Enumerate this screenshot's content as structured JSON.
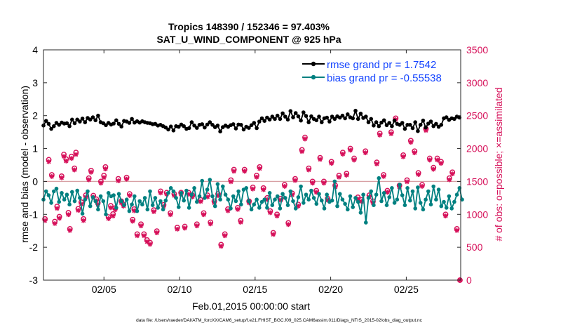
{
  "chart_data": {
    "type": "line",
    "title_line1": "Tropics 148390 / 152346 = 97.403%",
    "title_line2": "SAT_U_WIND_COMPONENT @ 925 hPa",
    "xlabel": "Feb.01,2015 00:00:00 start",
    "ylabel_left": "rmse and bias (model - observation)",
    "ylabel_right": "# of obs: o=possible; ×=assimilated",
    "footnote": "data file: /Users/raeder/DAI/ATM_forcXX/CAM6_setup/f.e21.FHIST_BGC.f09_025.CAM6assim.011/Diags_NTrS_2015-02/obs_diag_output.nc",
    "x_ticks": [
      "02/05",
      "02/10",
      "02/15",
      "02/20",
      "02/25"
    ],
    "x_tick_values": [
      5,
      10,
      15,
      20,
      25
    ],
    "xlim": [
      1,
      28.6
    ],
    "ylim_left": [
      -3,
      4
    ],
    "left_ticks": [
      "-3",
      "-2",
      "-1",
      "0",
      "1",
      "2",
      "3",
      "4"
    ],
    "ylim_right": [
      0,
      3500
    ],
    "right_ticks": [
      "0",
      "500",
      "1000",
      "1500",
      "2000",
      "2500",
      "3000",
      "3500"
    ],
    "zero_line": 0,
    "colors": {
      "rmse": "#000000",
      "bias": "#008080",
      "obs": "#d6115a",
      "zero": "#d8a0a4",
      "legend_text": "#1646ff"
    },
    "series": [
      {
        "name": "rmse grand pr = 1.7542",
        "role": "rmse",
        "values": [
          1.7,
          1.84,
          1.75,
          1.6,
          1.68,
          1.78,
          1.72,
          1.79,
          1.76,
          1.77,
          1.68,
          1.88,
          1.77,
          1.88,
          1.82,
          1.91,
          1.8,
          1.93,
          1.88,
          1.95,
          1.86,
          2.0,
          1.8,
          1.77,
          1.71,
          1.78,
          1.73,
          1.76,
          1.86,
          1.75,
          1.67,
          1.84,
          1.82,
          1.78,
          1.9,
          1.79,
          1.83,
          1.79,
          1.83,
          1.8,
          1.78,
          1.77,
          1.74,
          1.75,
          1.7,
          1.72,
          1.68,
          1.64,
          1.58,
          1.67,
          1.55,
          1.68,
          1.66,
          1.73,
          1.68,
          1.6,
          1.62,
          1.8,
          1.7,
          1.63,
          1.72,
          1.74,
          1.64,
          1.73,
          1.8,
          1.72,
          1.65,
          1.7,
          1.52,
          1.65,
          1.7,
          1.66,
          1.71,
          1.74,
          1.61,
          1.73,
          1.72,
          1.58,
          1.66,
          1.63,
          1.71,
          1.78,
          1.62,
          1.82,
          1.92,
          1.84,
          1.94,
          1.88,
          1.97,
          1.9,
          2.0,
          1.9,
          2.07,
          1.97,
          1.88,
          2.14,
          1.95,
          2.08,
          1.98,
          1.85,
          2.1,
          1.99,
          1.8,
          1.98,
          1.9,
          1.86,
          1.97,
          1.8,
          1.92,
          1.94,
          1.82,
          1.97,
          1.9,
          1.98,
          1.94,
          2.0,
          1.92,
          2.04,
          1.95,
          1.92,
          2.15,
          1.9,
          2.06,
          1.93,
          1.97,
          1.8,
          1.9,
          1.7,
          1.8,
          1.68,
          1.79,
          1.86,
          1.71,
          1.78,
          1.68,
          1.85,
          1.75,
          1.72,
          1.78,
          1.6,
          1.72,
          1.72,
          1.62,
          1.8,
          1.53,
          1.72,
          1.85,
          1.64,
          1.76,
          1.82,
          1.68,
          1.75,
          1.66,
          1.72,
          1.92,
          1.95,
          1.87,
          1.92,
          1.9,
          1.97,
          1.94
        ],
        "x_start": 1.0,
        "x_step": 0.172
      },
      {
        "name": "bias grand pr = -0.55538",
        "role": "bias",
        "values": [
          -0.55,
          -0.3,
          -0.42,
          -0.65,
          -0.3,
          -0.22,
          -0.62,
          -0.35,
          -0.55,
          -0.4,
          -0.7,
          -0.32,
          -0.6,
          -0.28,
          -0.5,
          -0.98,
          -0.55,
          -0.3,
          -0.75,
          -0.48,
          -0.6,
          -0.85,
          -0.45,
          -0.6,
          -1.0,
          -0.35,
          -0.45,
          -0.42,
          -0.8,
          -0.38,
          -0.6,
          -0.72,
          -0.55,
          -0.9,
          -0.7,
          -0.45,
          -0.9,
          -0.6,
          -0.7,
          -0.5,
          -0.85,
          -0.3,
          -0.72,
          -0.5,
          -0.8,
          -0.6,
          -0.85,
          -0.58,
          -0.35,
          -0.2,
          -0.3,
          -0.5,
          -0.78,
          -0.35,
          -0.58,
          -0.28,
          -0.8,
          -0.4,
          -0.2,
          -0.62,
          -0.45,
          0.02,
          -0.5,
          -0.25,
          0.05,
          -0.45,
          -0.75,
          -0.08,
          -0.55,
          -0.15,
          -0.4,
          -0.55,
          -0.82,
          -0.45,
          -0.6,
          -0.3,
          -0.7,
          -0.25,
          -0.2,
          -0.6,
          -0.85,
          -0.7,
          -0.55,
          -0.8,
          -0.62,
          -0.55,
          -0.8,
          -0.35,
          -0.72,
          -0.55,
          -0.45,
          -0.82,
          -0.38,
          -0.5,
          -0.72,
          -0.3,
          -0.6,
          -0.82,
          -0.48,
          -0.15,
          -0.65,
          -0.4,
          -0.55,
          -0.28,
          -0.5,
          -0.68,
          -0.38,
          -0.58,
          -0.82,
          -0.4,
          -0.62,
          -0.58,
          0.0,
          -0.75,
          -0.38,
          -0.55,
          -0.68,
          -0.85,
          -0.45,
          -0.78,
          -0.5,
          -0.62,
          -0.95,
          -0.4,
          -1.25,
          -0.5,
          -0.3,
          -0.72,
          -0.4,
          0.1,
          -0.6,
          -0.35,
          -0.72,
          -0.48,
          -0.2,
          -0.65,
          -0.55,
          -0.1,
          -0.42,
          -0.72,
          -0.2,
          -0.58,
          -0.3,
          -0.82,
          -0.18,
          -0.65,
          -0.85,
          -0.55,
          -0.3,
          -0.7,
          -0.15,
          -0.55,
          -0.25,
          -0.75,
          -0.62,
          -0.8,
          -0.45,
          -0.82,
          -0.62,
          -0.4,
          -0.2,
          -0.55
        ],
        "x_start": 1.0,
        "x_step": 0.172
      }
    ],
    "obs_counts": [
      {
        "x": 1.1,
        "possible": 930,
        "assimilated": 905
      },
      {
        "x": 1.35,
        "possible": 1830,
        "assimilated": 1800
      },
      {
        "x": 1.55,
        "possible": 1600,
        "assimilated": 1575
      },
      {
        "x": 1.75,
        "possible": 890,
        "assimilated": 860
      },
      {
        "x": 1.9,
        "possible": 1120,
        "assimilated": 1090
      },
      {
        "x": 2.05,
        "possible": 965,
        "assimilated": 940
      },
      {
        "x": 2.2,
        "possible": 1580,
        "assimilated": 1555
      },
      {
        "x": 2.35,
        "possible": 1910,
        "assimilated": 1880
      },
      {
        "x": 2.5,
        "possible": 1840,
        "assimilated": 1810
      },
      {
        "x": 2.65,
        "possible": 1025,
        "assimilated": 995
      },
      {
        "x": 2.75,
        "possible": 780,
        "assimilated": 755
      },
      {
        "x": 2.85,
        "possible": 1880,
        "assimilated": 1850
      },
      {
        "x": 3.05,
        "possible": 1700,
        "assimilated": 1675
      },
      {
        "x": 3.15,
        "possible": 1940,
        "assimilated": 1910
      },
      {
        "x": 3.3,
        "possible": 1085,
        "assimilated": 1060
      },
      {
        "x": 3.5,
        "possible": 1185,
        "assimilated": 1155
      },
      {
        "x": 3.65,
        "possible": 930,
        "assimilated": 905
      },
      {
        "x": 3.8,
        "possible": 1290,
        "assimilated": 1260
      },
      {
        "x": 4.0,
        "possible": 1550,
        "assimilated": 1525
      },
      {
        "x": 4.15,
        "possible": 1665,
        "assimilated": 1640
      },
      {
        "x": 4.3,
        "possible": 1285,
        "assimilated": 1260
      },
      {
        "x": 4.5,
        "possible": 1230,
        "assimilated": 1205
      },
      {
        "x": 4.6,
        "possible": 1175,
        "assimilated": 1150
      },
      {
        "x": 4.8,
        "possible": 1500,
        "assimilated": 1475
      },
      {
        "x": 5.0,
        "possible": 1590,
        "assimilated": 1560
      },
      {
        "x": 5.1,
        "possible": 1720,
        "assimilated": 1690
      },
      {
        "x": 5.3,
        "possible": 960,
        "assimilated": 935
      },
      {
        "x": 5.45,
        "possible": 1130,
        "assimilated": 1100
      },
      {
        "x": 5.6,
        "possible": 1005,
        "assimilated": 975
      },
      {
        "x": 5.75,
        "possible": 1095,
        "assimilated": 1070
      },
      {
        "x": 5.95,
        "possible": 1540,
        "assimilated": 1510
      },
      {
        "x": 6.15,
        "possible": 1200,
        "assimilated": 1175
      },
      {
        "x": 6.3,
        "possible": 1150,
        "assimilated": 1125
      },
      {
        "x": 6.5,
        "possible": 1560,
        "assimilated": 1535
      },
      {
        "x": 6.7,
        "possible": 1310,
        "assimilated": 1285
      },
      {
        "x": 6.9,
        "possible": 920,
        "assimilated": 895
      },
      {
        "x": 7.0,
        "possible": 1080,
        "assimilated": 1055
      },
      {
        "x": 7.2,
        "possible": 700,
        "assimilated": 675
      },
      {
        "x": 7.45,
        "possible": 850,
        "assimilated": 825
      },
      {
        "x": 7.65,
        "possible": 700,
        "assimilated": 675
      },
      {
        "x": 7.85,
        "possible": 610,
        "assimilated": 585
      },
      {
        "x": 8.05,
        "possible": 570,
        "assimilated": 545
      },
      {
        "x": 8.3,
        "possible": 1065,
        "assimilated": 1040
      },
      {
        "x": 8.5,
        "possible": 745,
        "assimilated": 720
      },
      {
        "x": 8.75,
        "possible": 1350,
        "assimilated": 1325
      },
      {
        "x": 8.95,
        "possible": 1145,
        "assimilated": 1120
      },
      {
        "x": 9.15,
        "possible": 1330,
        "assimilated": 1305
      },
      {
        "x": 9.4,
        "possible": 1020,
        "assimilated": 995
      },
      {
        "x": 9.65,
        "possible": 1310,
        "assimilated": 1285
      },
      {
        "x": 9.85,
        "possible": 800,
        "assimilated": 775
      },
      {
        "x": 10.1,
        "possible": 1330,
        "assimilated": 1305
      },
      {
        "x": 10.35,
        "possible": 815,
        "assimilated": 790
      },
      {
        "x": 10.6,
        "possible": 1330,
        "assimilated": 1305
      },
      {
        "x": 10.85,
        "possible": 1290,
        "assimilated": 1265
      },
      {
        "x": 11.15,
        "possible": 850,
        "assimilated": 825
      },
      {
        "x": 11.4,
        "possible": 1220,
        "assimilated": 1195
      },
      {
        "x": 11.6,
        "possible": 1020,
        "assimilated": 995
      },
      {
        "x": 11.85,
        "possible": 1290,
        "assimilated": 1265
      },
      {
        "x": 12.05,
        "possible": 880,
        "assimilated": 855
      },
      {
        "x": 12.3,
        "possible": 1200,
        "assimilated": 1175
      },
      {
        "x": 12.55,
        "possible": 1310,
        "assimilated": 1285
      },
      {
        "x": 12.75,
        "possible": 540,
        "assimilated": 515
      },
      {
        "x": 13.0,
        "possible": 700,
        "assimilated": 675
      },
      {
        "x": 13.2,
        "possible": 1080,
        "assimilated": 1055
      },
      {
        "x": 13.4,
        "possible": 1520,
        "assimilated": 1495
      },
      {
        "x": 13.6,
        "possible": 1680,
        "assimilated": 1655
      },
      {
        "x": 13.85,
        "possible": 1100,
        "assimilated": 1075
      },
      {
        "x": 14.05,
        "possible": 905,
        "assimilated": 880
      },
      {
        "x": 14.3,
        "possible": 1680,
        "assimilated": 1655
      },
      {
        "x": 14.6,
        "possible": 1200,
        "assimilated": 1175
      },
      {
        "x": 14.85,
        "possible": 1410,
        "assimilated": 1385
      },
      {
        "x": 15.1,
        "possible": 1590,
        "assimilated": 1565
      },
      {
        "x": 15.3,
        "possible": 1720,
        "assimilated": 1695
      },
      {
        "x": 15.55,
        "possible": 1400,
        "assimilated": 1375
      },
      {
        "x": 15.8,
        "possible": 1250,
        "assimilated": 1225
      },
      {
        "x": 16.0,
        "possible": 1050,
        "assimilated": 1025
      },
      {
        "x": 16.2,
        "possible": 720,
        "assimilated": 695
      },
      {
        "x": 16.45,
        "possible": 1000,
        "assimilated": 975
      },
      {
        "x": 16.7,
        "possible": 1240,
        "assimilated": 1215
      },
      {
        "x": 16.95,
        "possible": 1450,
        "assimilated": 1425
      },
      {
        "x": 17.2,
        "possible": 870,
        "assimilated": 845
      },
      {
        "x": 17.45,
        "possible": 1320,
        "assimilated": 1295
      },
      {
        "x": 17.65,
        "possible": 1540,
        "assimilated": 1515
      },
      {
        "x": 17.85,
        "possible": 1150,
        "assimilated": 1125
      },
      {
        "x": 18.1,
        "possible": 1980,
        "assimilated": 1955
      },
      {
        "x": 18.3,
        "possible": 2170,
        "assimilated": 2145
      },
      {
        "x": 18.55,
        "possible": 1700,
        "assimilated": 1675
      },
      {
        "x": 18.8,
        "possible": 1500,
        "assimilated": 1475
      },
      {
        "x": 19.05,
        "possible": 1360,
        "assimilated": 1335
      },
      {
        "x": 19.3,
        "possible": 1860,
        "assimilated": 1835
      },
      {
        "x": 19.55,
        "possible": 1500,
        "assimilated": 1475
      },
      {
        "x": 19.8,
        "possible": 1240,
        "assimilated": 1215
      },
      {
        "x": 20.05,
        "possible": 1800,
        "assimilated": 1775
      },
      {
        "x": 20.3,
        "possible": 1440,
        "assimilated": 1415
      },
      {
        "x": 20.55,
        "possible": 1590,
        "assimilated": 1565
      },
      {
        "x": 20.8,
        "possible": 1940,
        "assimilated": 1915
      },
      {
        "x": 21.05,
        "possible": 1620,
        "assimilated": 1595
      },
      {
        "x": 21.3,
        "possible": 2000,
        "assimilated": 1975
      },
      {
        "x": 21.55,
        "possible": 1850,
        "assimilated": 1825
      },
      {
        "x": 21.8,
        "possible": 1260,
        "assimilated": 1235
      },
      {
        "x": 22.05,
        "possible": 1220,
        "assimilated": 1195
      },
      {
        "x": 22.3,
        "possible": 1960,
        "assimilated": 1935
      },
      {
        "x": 22.55,
        "possible": 1290,
        "assimilated": 1265
      },
      {
        "x": 22.8,
        "possible": 1200,
        "assimilated": 1175
      },
      {
        "x": 23.05,
        "possible": 1790,
        "assimilated": 1765
      },
      {
        "x": 23.25,
        "possible": 2230,
        "assimilated": 2205
      },
      {
        "x": 23.5,
        "possible": 1600,
        "assimilated": 1575
      },
      {
        "x": 23.75,
        "possible": 1360,
        "assimilated": 1335
      },
      {
        "x": 24.0,
        "possible": 2250,
        "assimilated": 2225
      },
      {
        "x": 24.3,
        "possible": 2460,
        "assimilated": 2440
      },
      {
        "x": 24.55,
        "possible": 1440,
        "assimilated": 1415
      },
      {
        "x": 24.8,
        "possible": 1900,
        "assimilated": 1875
      },
      {
        "x": 25.05,
        "possible": 1520,
        "assimilated": 1495
      },
      {
        "x": 25.3,
        "possible": 2120,
        "assimilated": 2095
      },
      {
        "x": 25.55,
        "possible": 1960,
        "assimilated": 1935
      },
      {
        "x": 25.8,
        "possible": 1630,
        "assimilated": 1605
      },
      {
        "x": 26.05,
        "possible": 1450,
        "assimilated": 1425
      },
      {
        "x": 26.3,
        "possible": 2300,
        "assimilated": 2275
      },
      {
        "x": 26.55,
        "possible": 1850,
        "assimilated": 1825
      },
      {
        "x": 26.8,
        "possible": 1710,
        "assimilated": 1685
      },
      {
        "x": 27.05,
        "possible": 1850,
        "assimilated": 1825
      },
      {
        "x": 27.3,
        "possible": 1800,
        "assimilated": 1775
      },
      {
        "x": 27.6,
        "possible": 1000,
        "assimilated": 975
      },
      {
        "x": 27.85,
        "possible": 1550,
        "assimilated": 1525
      },
      {
        "x": 28.05,
        "possible": 1640,
        "assimilated": 1615
      },
      {
        "x": 28.35,
        "possible": 780,
        "assimilated": 755
      },
      {
        "x": 28.55,
        "possible": 0,
        "assimilated": 0
      }
    ]
  }
}
